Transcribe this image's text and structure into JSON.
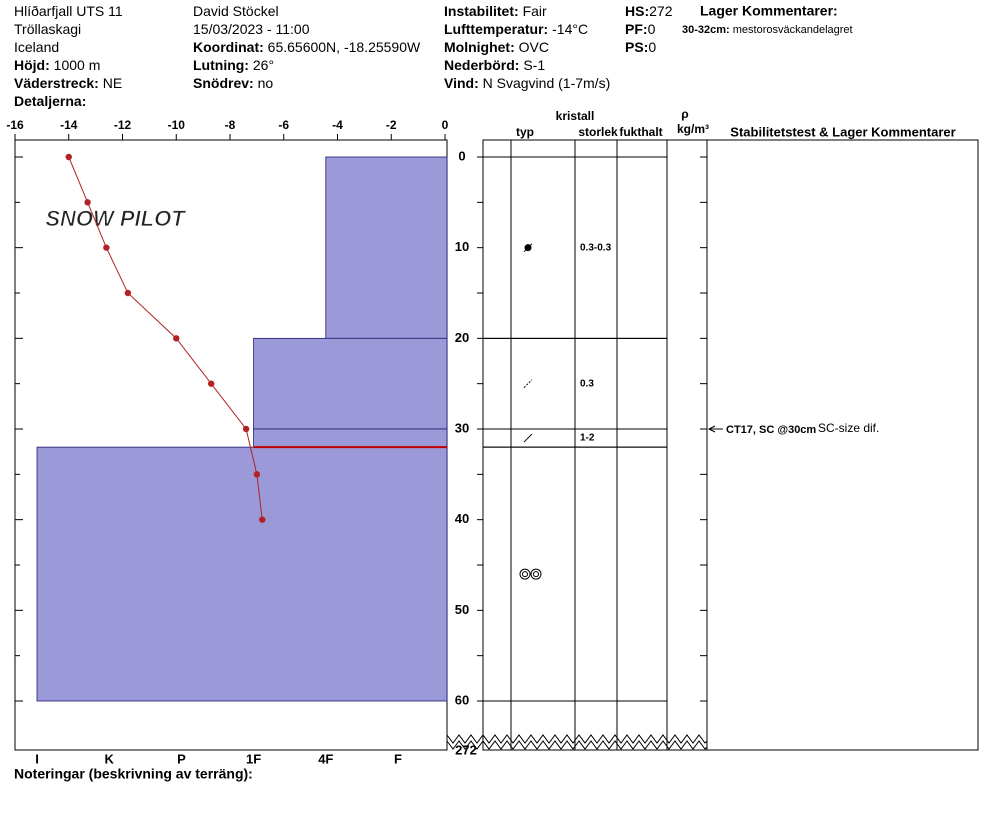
{
  "header": {
    "columns": [
      [
        {
          "value": "Hlíðarfjall UTS 11"
        },
        {
          "value": "Tröllaskagi"
        },
        {
          "value": "Iceland"
        },
        {
          "label": "Höjd:",
          "value": "1000 m"
        },
        {
          "label": "Väderstreck:",
          "value": "NE"
        },
        {
          "label": "Detaljerna:"
        }
      ],
      [
        {
          "value": "David Stöckel"
        },
        {
          "value": "15/03/2023 - 11:00"
        },
        {
          "label": "Koordinat:",
          "value": "65.65600N, -18.25590W"
        },
        {
          "label": "Lutning:",
          "value": "26°"
        },
        {
          "label": "Snödrev:",
          "value": "no"
        }
      ],
      [
        {
          "label": "Instabilitet:",
          "value": "Fair"
        },
        {
          "label": "Lufttemperatur:",
          "value": "-14°C"
        },
        {
          "label": "Molnighet:",
          "value": "OVC"
        },
        {
          "label": "Nederbörd:",
          "value": "S-1"
        },
        {
          "label": "Vind:",
          "value": "N Svagvind (1-7m/s)"
        }
      ],
      [
        {
          "label": "HS:",
          "value": "272"
        },
        {
          "label": "PF:",
          "value": "0"
        },
        {
          "label": "PS:",
          "value": "0"
        }
      ]
    ],
    "layer_comments_title": "Lager Kommentarer:",
    "layer_comment": {
      "label": "30-32cm:",
      "value": "mestorosväckandelagret"
    }
  },
  "chart_data": {
    "type": "snow-profile",
    "watermark": "SNOW PILOT",
    "xlim": [
      -16,
      0
    ],
    "xticks": [
      -16,
      -14,
      -12,
      -10,
      -8,
      -6,
      -4,
      -2,
      0
    ],
    "ylim": [
      0,
      60
    ],
    "yticks": [
      0,
      10,
      20,
      30,
      40,
      50,
      60
    ],
    "yminor": [
      5,
      15,
      25,
      35,
      45,
      55
    ],
    "total_depth": 272,
    "hardness_ticks": [
      "I",
      "K",
      "P",
      "1F",
      "4F",
      "F"
    ],
    "layer_color": "#9b99d8",
    "layers": [
      {
        "top": 0,
        "bottom": 20,
        "hardness": "4F",
        "size": "0.3-0.3"
      },
      {
        "top": 20,
        "bottom": 30,
        "hardness": "1F",
        "size": "0.3"
      },
      {
        "top": 30,
        "bottom": 32,
        "hardness": "1F",
        "size": "1-2"
      },
      {
        "top": 32,
        "bottom": 60,
        "hardness": "I"
      }
    ],
    "critical_layer": {
      "depth": 32,
      "color": "#c00000"
    },
    "temperature": {
      "color": "#b22222",
      "depth": [
        0,
        5,
        10,
        15,
        20,
        25,
        30,
        35,
        40
      ],
      "values": [
        -14,
        -13.3,
        -12.6,
        -11.8,
        -10,
        -8.7,
        -7.4,
        -7,
        -6.8
      ]
    },
    "columns": {
      "type": "typ",
      "crystal": "kristall",
      "size": "storlek",
      "moisture": "fukthalt",
      "rho": "ρ",
      "density_unit": "kg/m³",
      "comments": "Stabilitetstest & Lager Kommentarer"
    },
    "tests": [
      {
        "depth": 30,
        "label": "CT17, SC @30cm",
        "comment": "SC-size dif."
      }
    ],
    "notes_label": "Noteringar (beskrivning av terräng):"
  }
}
